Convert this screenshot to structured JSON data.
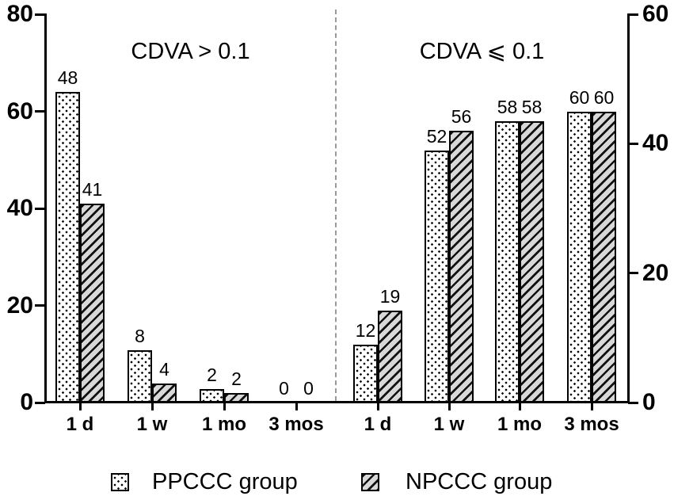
{
  "chart_data": {
    "type": "bar",
    "title": "",
    "panels": [
      {
        "label": "CDVA > 0.1",
        "categories": [
          "1 d",
          "1 w",
          "1 mo",
          "3 mos"
        ],
        "series": [
          {
            "name": "PPCCC group",
            "pattern": "dots",
            "values": [
              48,
              8,
              2,
              0
            ],
            "display_values": [
              64,
              10.7,
              2.7,
              0
            ]
          },
          {
            "name": "NPCCC group",
            "pattern": "hatch",
            "values": [
              41,
              4,
              2,
              0
            ],
            "display_values": [
              41,
              4,
              2,
              0
            ]
          }
        ]
      },
      {
        "label": "CDVA ⩽ 0.1",
        "categories": [
          "1 d",
          "1 w",
          "1 mo",
          "3 mos"
        ],
        "series": [
          {
            "name": "PPCCC group",
            "pattern": "dots",
            "values": [
              12,
              52,
              58,
              60
            ],
            "display_values": [
              12,
              52,
              58,
              60
            ]
          },
          {
            "name": "NPCCC group",
            "pattern": "hatch",
            "values": [
              19,
              56,
              58,
              60
            ],
            "display_values": [
              19,
              56,
              58,
              60
            ]
          }
        ]
      }
    ],
    "left_axis": {
      "range": [
        0,
        80
      ],
      "ticks": [
        0,
        20,
        40,
        60,
        80
      ]
    },
    "right_axis": {
      "range": [
        0,
        60
      ],
      "ticks": [
        0,
        20,
        40,
        60
      ]
    },
    "legend": [
      {
        "label": "PPCCC group",
        "pattern": "dots"
      },
      {
        "label": "NPCCC group",
        "pattern": "hatch"
      }
    ],
    "layout_hints": {
      "legend_position": "bottom",
      "grid": "off",
      "divider": "dashed vertical line between panels",
      "note": "display_values are the drawn bar heights on the left 0-80 axis; numeric labels above bars show the counts"
    },
    "colors": {
      "background": "#ffffff",
      "text": "#000000",
      "bar_border": "#000000",
      "dot": "#000000",
      "dot_bg": "#ffffff",
      "hatch_line": "#111111",
      "hatch_bg": "#d8d8d8",
      "divider": "#9a9a9a"
    }
  }
}
